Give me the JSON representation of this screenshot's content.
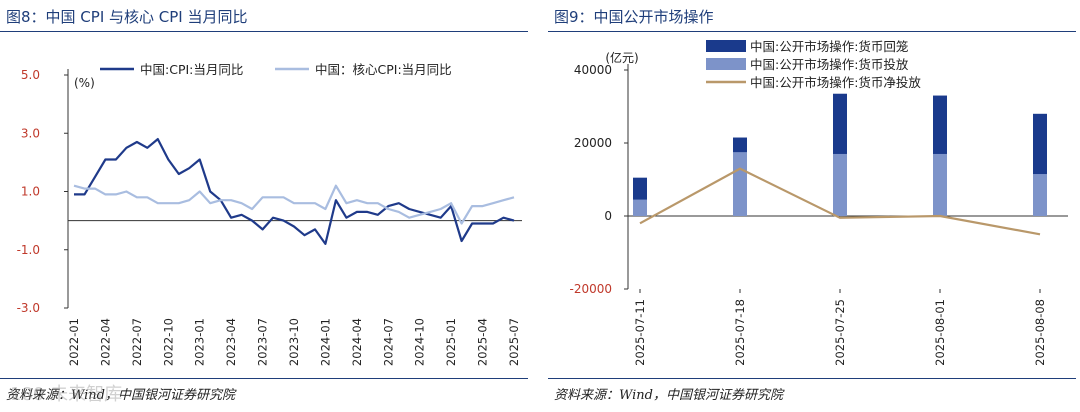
{
  "watermark": "180 未来智库",
  "chart_data": [
    {
      "id": "left",
      "type": "line",
      "title": "图8：中国 CPI 与核心 CPI 当月同比",
      "source": "资料来源：Wind，中国银河证券研究院",
      "unit": "(%)",
      "xlabel": "",
      "ylabel": "",
      "ylim": [
        -3.0,
        5.0
      ],
      "yticks": [
        "5.0",
        "3.0",
        "1.0",
        "-1.0",
        "-3.0"
      ],
      "ytick_values": [
        5.0,
        3.0,
        1.0,
        -1.0,
        -3.0
      ],
      "ytick_colors": [
        "#c0392b",
        "#c0392b",
        "#c0392b",
        "#c0392b",
        "#c0392b"
      ],
      "xticks": [
        "2022-01",
        "2022-04",
        "2022-07",
        "2022-10",
        "2023-01",
        "2023-04",
        "2023-07",
        "2023-10",
        "2024-01",
        "2024-04",
        "2024-07",
        "2024-10",
        "2025-01",
        "2025-04",
        "2025-07"
      ],
      "x": [
        "2022-01",
        "2022-02",
        "2022-03",
        "2022-04",
        "2022-05",
        "2022-06",
        "2022-07",
        "2022-08",
        "2022-09",
        "2022-10",
        "2022-11",
        "2022-12",
        "2023-01",
        "2023-02",
        "2023-03",
        "2023-04",
        "2023-05",
        "2023-06",
        "2023-07",
        "2023-08",
        "2023-09",
        "2023-10",
        "2023-11",
        "2023-12",
        "2024-01",
        "2024-02",
        "2024-03",
        "2024-04",
        "2024-05",
        "2024-06",
        "2024-07",
        "2024-08",
        "2024-09",
        "2024-10",
        "2024-11",
        "2024-12",
        "2025-01",
        "2025-02",
        "2025-03",
        "2025-04",
        "2025-05",
        "2025-06",
        "2025-07"
      ],
      "series": [
        {
          "name": "中国:CPI:当月同比",
          "color": "#1f3a8a",
          "width": 2.2,
          "values": [
            0.9,
            0.9,
            1.5,
            2.1,
            2.1,
            2.5,
            2.7,
            2.5,
            2.8,
            2.1,
            1.6,
            1.8,
            2.1,
            1.0,
            0.7,
            0.1,
            0.2,
            0.0,
            -0.3,
            0.1,
            0.0,
            -0.2,
            -0.5,
            -0.3,
            -0.8,
            0.7,
            0.1,
            0.3,
            0.3,
            0.2,
            0.5,
            0.6,
            0.4,
            0.3,
            0.2,
            0.1,
            0.5,
            -0.7,
            -0.1,
            -0.1,
            -0.1,
            0.1,
            0.0
          ]
        },
        {
          "name": "中国：核心CPI:当月同比",
          "color": "#a9bde0",
          "width": 2.2,
          "values": [
            1.2,
            1.1,
            1.1,
            0.9,
            0.9,
            1.0,
            0.8,
            0.8,
            0.6,
            0.6,
            0.6,
            0.7,
            1.0,
            0.6,
            0.7,
            0.7,
            0.6,
            0.4,
            0.8,
            0.8,
            0.8,
            0.6,
            0.6,
            0.6,
            0.4,
            1.2,
            0.6,
            0.7,
            0.6,
            0.6,
            0.4,
            0.3,
            0.1,
            0.2,
            0.3,
            0.4,
            0.6,
            -0.1,
            0.5,
            0.5,
            0.6,
            0.7,
            0.8
          ]
        }
      ],
      "legend_position": "top"
    },
    {
      "id": "right",
      "type": "bar",
      "title": "图9：中国公开市场操作",
      "source": "资料来源：Wind，中国银河证券研究院",
      "unit": "(亿元)",
      "xlabel": "",
      "ylabel": "",
      "ylim": [
        -20000,
        40000
      ],
      "yticks": [
        "40000",
        "20000",
        "0",
        "-20000"
      ],
      "ytick_values": [
        40000,
        20000,
        0,
        -20000
      ],
      "ytick_colors": [
        "#222222",
        "#222222",
        "#222222",
        "#c0392b"
      ],
      "categories": [
        "2025-07-11",
        "2025-07-18",
        "2025-07-25",
        "2025-08-01",
        "2025-08-08"
      ],
      "series": [
        {
          "name": "中国:公开市场操作:货币回笼",
          "kind": "bar",
          "color": "#1a3a8c",
          "values": [
            10500,
            21500,
            33500,
            33000,
            28000
          ]
        },
        {
          "name": "中国:公开市场操作:货币投放",
          "kind": "bar",
          "color": "#7d93c9",
          "values": [
            4500,
            17500,
            17000,
            17000,
            11500
          ]
        },
        {
          "name": "中国:公开市场操作:货币净投放",
          "kind": "line",
          "color": "#b9986a",
          "values": [
            -2000,
            13000,
            -500,
            0,
            -5000
          ]
        }
      ],
      "legend_position": "top"
    }
  ]
}
